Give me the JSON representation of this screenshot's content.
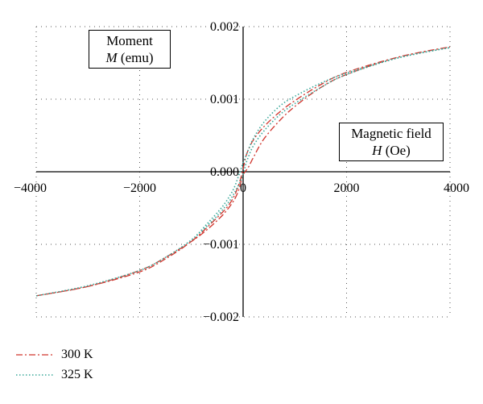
{
  "chart_data": {
    "type": "line",
    "title": "",
    "x_axis": {
      "label_line1": "Magnetic field",
      "label_symbol": "H",
      "label_unit": "(Oe)",
      "range": [
        -4000,
        4000
      ],
      "ticks": [
        "−4000",
        "−2000",
        "0",
        "2000",
        "4000"
      ],
      "tick_values": [
        -4000,
        -2000,
        0,
        2000,
        4000
      ]
    },
    "y_axis": {
      "label_line1": "Moment",
      "label_symbol": "M",
      "label_unit": "(emu)",
      "range": [
        -0.002,
        0.002
      ],
      "ticks": [
        "0.002",
        "0.001",
        "0.000",
        "−0.001",
        "−0.002"
      ],
      "tick_values": [
        0.002,
        0.001,
        0.0,
        -0.001,
        -0.002
      ]
    },
    "grid": true,
    "legend_position": "bottom-left",
    "series": [
      {
        "name": "300 K",
        "color": "#d0342c",
        "style": "dash-dot",
        "x": [
          -4000,
          -3000,
          -2000,
          -1500,
          -1000,
          -600,
          -300,
          -150,
          -50,
          0,
          50,
          100,
          200,
          400,
          700,
          1000,
          1500,
          2000,
          3000,
          4000,
          3000,
          2000,
          1500,
          1000,
          700,
          400,
          200,
          100,
          0,
          -50,
          -100,
          -200,
          -400,
          -700,
          -1000,
          -1500,
          -2000,
          -3000,
          -4000
        ],
        "y": [
          -0.00171,
          -0.00158,
          -0.00138,
          -0.0012,
          -0.00096,
          -0.0007,
          -0.00048,
          -0.0003,
          -0.0001,
          4e-05,
          0.0002,
          0.0003,
          0.00044,
          0.00062,
          0.00082,
          0.00098,
          0.0012,
          0.00137,
          0.00158,
          0.00172,
          0.00158,
          0.00134,
          0.00116,
          0.0009,
          0.0007,
          0.00045,
          0.0002,
          6e-05,
          -4e-05,
          -0.00016,
          -0.00028,
          -0.00042,
          -0.0006,
          -0.0008,
          -0.00096,
          -0.00118,
          -0.00136,
          -0.00158,
          -0.00171
        ]
      },
      {
        "name": "325 K",
        "color": "#3aa89a",
        "style": "dotted",
        "x": [
          -4000,
          -3000,
          -2000,
          -1500,
          -1000,
          -600,
          -300,
          -100,
          0,
          50,
          100,
          200,
          400,
          700,
          1000,
          1500,
          2000,
          3000,
          4000,
          3000,
          2000,
          1500,
          1000,
          700,
          400,
          200,
          100,
          0,
          -50,
          -100,
          -200,
          -400,
          -700,
          -1000,
          -1500,
          -2000,
          -3000,
          -4000
        ],
        "y": [
          -0.00171,
          -0.00157,
          -0.00136,
          -0.00118,
          -0.00094,
          -0.00068,
          -0.00044,
          -0.0002,
          -4e-05,
          0.0001,
          0.0002,
          0.00036,
          0.00056,
          0.00078,
          0.00094,
          0.00116,
          0.00134,
          0.00157,
          0.00171,
          0.00157,
          0.00136,
          0.00122,
          0.00104,
          0.0009,
          0.00068,
          0.00046,
          0.0003,
          0.00012,
          2e-05,
          -8e-05,
          -0.00026,
          -0.00048,
          -0.00072,
          -0.00094,
          -0.00118,
          -0.00136,
          -0.00157,
          -0.00171
        ]
      }
    ]
  }
}
